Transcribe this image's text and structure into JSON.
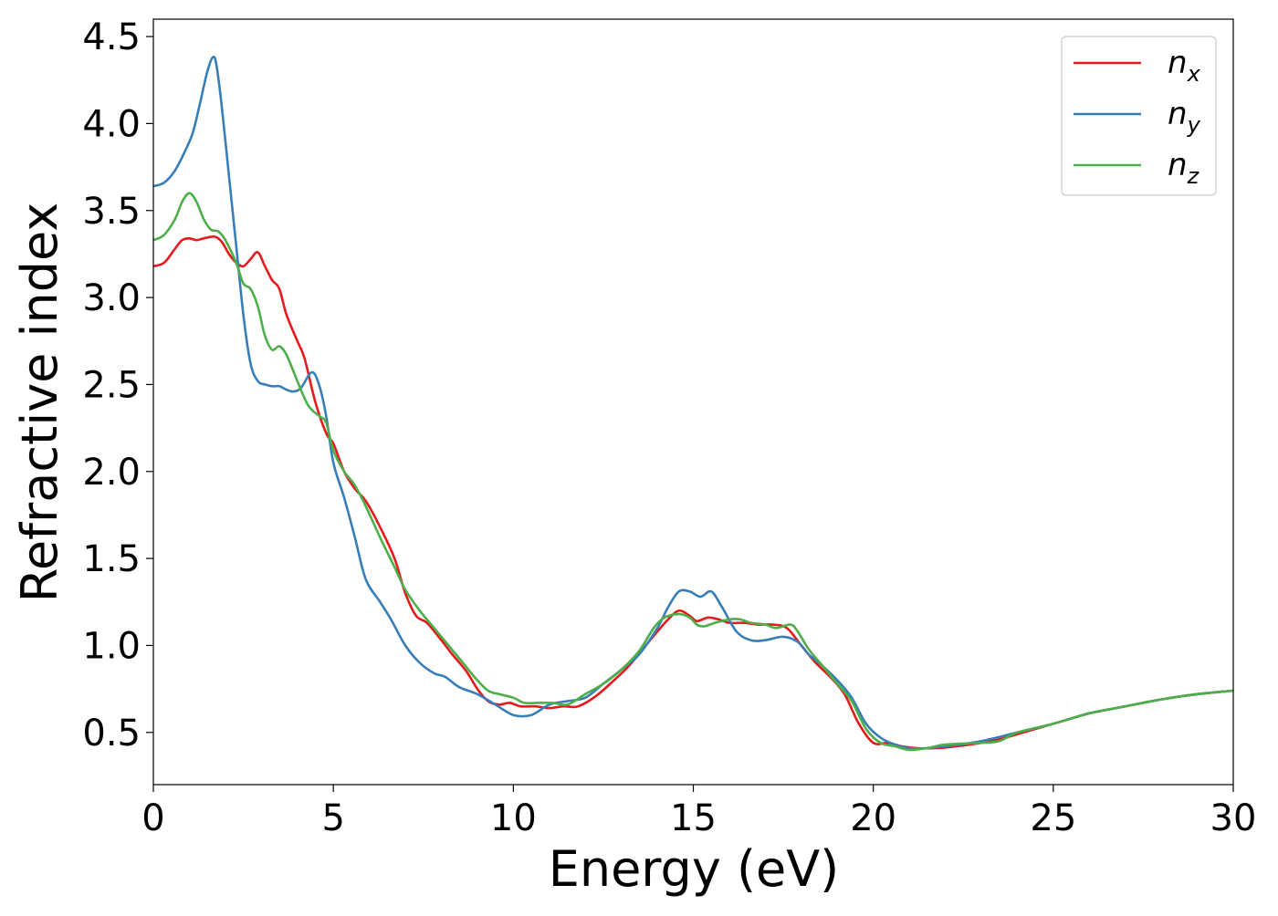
{
  "chart_data": {
    "type": "line",
    "title": "",
    "xlabel": "Energy (eV)",
    "ylabel": "Refractive index",
    "xlim": [
      0,
      30
    ],
    "ylim": [
      0.2,
      4.6
    ],
    "xticks": [
      "0",
      "5",
      "10",
      "15",
      "20",
      "25",
      "30"
    ],
    "yticks": [
      "0.5",
      "1.0",
      "1.5",
      "2.0",
      "2.5",
      "3.0",
      "3.5",
      "4.0",
      "4.5"
    ],
    "grid": false,
    "legend_position": "top-right",
    "series": [
      {
        "name": "n_x",
        "legend_base": "n",
        "legend_sub": "x",
        "color": "#e41a1c",
        "points": [
          [
            0,
            3.18
          ],
          [
            0.3,
            3.2
          ],
          [
            0.6,
            3.28
          ],
          [
            0.8,
            3.33
          ],
          [
            1.0,
            3.34
          ],
          [
            1.2,
            3.33
          ],
          [
            1.4,
            3.34
          ],
          [
            1.7,
            3.35
          ],
          [
            1.9,
            3.32
          ],
          [
            2.1,
            3.25
          ],
          [
            2.3,
            3.2
          ],
          [
            2.5,
            3.18
          ],
          [
            2.7,
            3.22
          ],
          [
            2.9,
            3.26
          ],
          [
            3.1,
            3.18
          ],
          [
            3.3,
            3.1
          ],
          [
            3.5,
            3.05
          ],
          [
            3.7,
            2.9
          ],
          [
            4.0,
            2.75
          ],
          [
            4.2,
            2.65
          ],
          [
            4.5,
            2.4
          ],
          [
            4.8,
            2.22
          ],
          [
            5.0,
            2.16
          ],
          [
            5.3,
            2.0
          ],
          [
            5.6,
            1.9
          ],
          [
            5.9,
            1.83
          ],
          [
            6.3,
            1.68
          ],
          [
            6.7,
            1.5
          ],
          [
            7.0,
            1.3
          ],
          [
            7.3,
            1.17
          ],
          [
            7.6,
            1.13
          ],
          [
            8.0,
            1.03
          ],
          [
            8.3,
            0.95
          ],
          [
            8.7,
            0.85
          ],
          [
            9.0,
            0.75
          ],
          [
            9.3,
            0.68
          ],
          [
            9.6,
            0.66
          ],
          [
            9.9,
            0.67
          ],
          [
            10.2,
            0.65
          ],
          [
            10.6,
            0.65
          ],
          [
            11.0,
            0.64
          ],
          [
            11.4,
            0.65
          ],
          [
            11.8,
            0.65
          ],
          [
            12.3,
            0.71
          ],
          [
            12.8,
            0.8
          ],
          [
            13.2,
            0.88
          ],
          [
            13.6,
            0.98
          ],
          [
            14.0,
            1.08
          ],
          [
            14.3,
            1.15
          ],
          [
            14.6,
            1.2
          ],
          [
            14.9,
            1.17
          ],
          [
            15.1,
            1.14
          ],
          [
            15.4,
            1.16
          ],
          [
            15.7,
            1.15
          ],
          [
            16.0,
            1.13
          ],
          [
            16.4,
            1.13
          ],
          [
            16.8,
            1.12
          ],
          [
            17.2,
            1.12
          ],
          [
            17.6,
            1.1
          ],
          [
            18.0,
            1.0
          ],
          [
            18.4,
            0.9
          ],
          [
            18.8,
            0.82
          ],
          [
            19.2,
            0.72
          ],
          [
            19.6,
            0.55
          ],
          [
            20.0,
            0.44
          ],
          [
            20.4,
            0.44
          ],
          [
            20.8,
            0.42
          ],
          [
            21.2,
            0.41
          ],
          [
            21.8,
            0.41
          ],
          [
            22.3,
            0.42
          ],
          [
            23.0,
            0.44
          ],
          [
            23.5,
            0.46
          ],
          [
            24.0,
            0.49
          ],
          [
            24.5,
            0.52
          ],
          [
            25.0,
            0.55
          ],
          [
            25.5,
            0.58
          ],
          [
            26.0,
            0.61
          ],
          [
            26.5,
            0.63
          ],
          [
            27.0,
            0.65
          ],
          [
            28.0,
            0.69
          ],
          [
            29.0,
            0.72
          ],
          [
            30.0,
            0.74
          ]
        ]
      },
      {
        "name": "n_y",
        "legend_base": "n",
        "legend_sub": "y",
        "color": "#377eb8",
        "points": [
          [
            0,
            3.64
          ],
          [
            0.3,
            3.66
          ],
          [
            0.6,
            3.73
          ],
          [
            0.9,
            3.85
          ],
          [
            1.1,
            3.95
          ],
          [
            1.3,
            4.12
          ],
          [
            1.5,
            4.3
          ],
          [
            1.65,
            4.38
          ],
          [
            1.75,
            4.34
          ],
          [
            1.9,
            4.1
          ],
          [
            2.1,
            3.7
          ],
          [
            2.3,
            3.3
          ],
          [
            2.5,
            2.9
          ],
          [
            2.7,
            2.62
          ],
          [
            2.9,
            2.52
          ],
          [
            3.1,
            2.5
          ],
          [
            3.3,
            2.49
          ],
          [
            3.5,
            2.49
          ],
          [
            3.7,
            2.47
          ],
          [
            3.9,
            2.46
          ],
          [
            4.1,
            2.48
          ],
          [
            4.4,
            2.57
          ],
          [
            4.6,
            2.5
          ],
          [
            4.8,
            2.32
          ],
          [
            5.0,
            2.05
          ],
          [
            5.3,
            1.85
          ],
          [
            5.6,
            1.62
          ],
          [
            5.9,
            1.38
          ],
          [
            6.3,
            1.25
          ],
          [
            6.6,
            1.15
          ],
          [
            7.0,
            1.0
          ],
          [
            7.4,
            0.9
          ],
          [
            7.8,
            0.84
          ],
          [
            8.1,
            0.82
          ],
          [
            8.5,
            0.76
          ],
          [
            9.0,
            0.72
          ],
          [
            9.5,
            0.66
          ],
          [
            10.0,
            0.6
          ],
          [
            10.5,
            0.6
          ],
          [
            11.0,
            0.66
          ],
          [
            11.5,
            0.68
          ],
          [
            12.0,
            0.7
          ],
          [
            12.5,
            0.78
          ],
          [
            13.0,
            0.86
          ],
          [
            13.5,
            0.95
          ],
          [
            14.0,
            1.1
          ],
          [
            14.3,
            1.22
          ],
          [
            14.6,
            1.31
          ],
          [
            14.9,
            1.31
          ],
          [
            15.2,
            1.28
          ],
          [
            15.5,
            1.31
          ],
          [
            15.8,
            1.22
          ],
          [
            16.2,
            1.08
          ],
          [
            16.6,
            1.03
          ],
          [
            17.0,
            1.03
          ],
          [
            17.5,
            1.05
          ],
          [
            17.9,
            1.02
          ],
          [
            18.2,
            0.95
          ],
          [
            18.6,
            0.88
          ],
          [
            19.0,
            0.8
          ],
          [
            19.4,
            0.7
          ],
          [
            19.8,
            0.55
          ],
          [
            20.2,
            0.47
          ],
          [
            20.6,
            0.43
          ],
          [
            21.0,
            0.41
          ],
          [
            21.5,
            0.41
          ],
          [
            22.0,
            0.42
          ],
          [
            23.0,
            0.45
          ],
          [
            24.0,
            0.5
          ],
          [
            25.0,
            0.55
          ],
          [
            26.0,
            0.61
          ],
          [
            27.0,
            0.65
          ],
          [
            28.0,
            0.69
          ],
          [
            29.0,
            0.72
          ],
          [
            30.0,
            0.74
          ]
        ]
      },
      {
        "name": "n_z",
        "legend_base": "n",
        "legend_sub": "z",
        "color": "#4daf4a",
        "points": [
          [
            0,
            3.33
          ],
          [
            0.3,
            3.36
          ],
          [
            0.6,
            3.45
          ],
          [
            0.8,
            3.55
          ],
          [
            1.0,
            3.6
          ],
          [
            1.2,
            3.55
          ],
          [
            1.4,
            3.45
          ],
          [
            1.6,
            3.39
          ],
          [
            1.8,
            3.38
          ],
          [
            2.0,
            3.33
          ],
          [
            2.3,
            3.2
          ],
          [
            2.5,
            3.08
          ],
          [
            2.7,
            3.05
          ],
          [
            2.9,
            2.95
          ],
          [
            3.1,
            2.78
          ],
          [
            3.3,
            2.7
          ],
          [
            3.5,
            2.72
          ],
          [
            3.7,
            2.67
          ],
          [
            4.0,
            2.52
          ],
          [
            4.3,
            2.38
          ],
          [
            4.6,
            2.32
          ],
          [
            4.8,
            2.28
          ],
          [
            5.0,
            2.12
          ],
          [
            5.3,
            2.0
          ],
          [
            5.6,
            1.92
          ],
          [
            5.9,
            1.8
          ],
          [
            6.3,
            1.62
          ],
          [
            6.7,
            1.45
          ],
          [
            7.0,
            1.32
          ],
          [
            7.4,
            1.2
          ],
          [
            7.8,
            1.1
          ],
          [
            8.2,
            1.0
          ],
          [
            8.6,
            0.9
          ],
          [
            9.0,
            0.8
          ],
          [
            9.3,
            0.74
          ],
          [
            9.6,
            0.72
          ],
          [
            10.0,
            0.7
          ],
          [
            10.3,
            0.67
          ],
          [
            10.7,
            0.67
          ],
          [
            11.1,
            0.67
          ],
          [
            11.5,
            0.66
          ],
          [
            12.0,
            0.72
          ],
          [
            12.5,
            0.78
          ],
          [
            13.0,
            0.86
          ],
          [
            13.5,
            0.97
          ],
          [
            13.9,
            1.1
          ],
          [
            14.2,
            1.16
          ],
          [
            14.6,
            1.18
          ],
          [
            14.9,
            1.16
          ],
          [
            15.1,
            1.12
          ],
          [
            15.3,
            1.11
          ],
          [
            15.6,
            1.13
          ],
          [
            16.0,
            1.15
          ],
          [
            16.3,
            1.15
          ],
          [
            16.6,
            1.13
          ],
          [
            17.0,
            1.12
          ],
          [
            17.3,
            1.1
          ],
          [
            17.7,
            1.12
          ],
          [
            17.9,
            1.08
          ],
          [
            18.2,
            0.98
          ],
          [
            18.6,
            0.88
          ],
          [
            19.0,
            0.78
          ],
          [
            19.4,
            0.68
          ],
          [
            19.8,
            0.52
          ],
          [
            20.2,
            0.44
          ],
          [
            20.6,
            0.42
          ],
          [
            21.0,
            0.4
          ],
          [
            21.5,
            0.41
          ],
          [
            22.0,
            0.43
          ],
          [
            23.0,
            0.44
          ],
          [
            23.5,
            0.45
          ],
          [
            24.0,
            0.5
          ],
          [
            25.0,
            0.55
          ],
          [
            26.0,
            0.61
          ],
          [
            27.0,
            0.65
          ],
          [
            28.0,
            0.69
          ],
          [
            29.0,
            0.72
          ],
          [
            30.0,
            0.74
          ]
        ]
      }
    ]
  }
}
